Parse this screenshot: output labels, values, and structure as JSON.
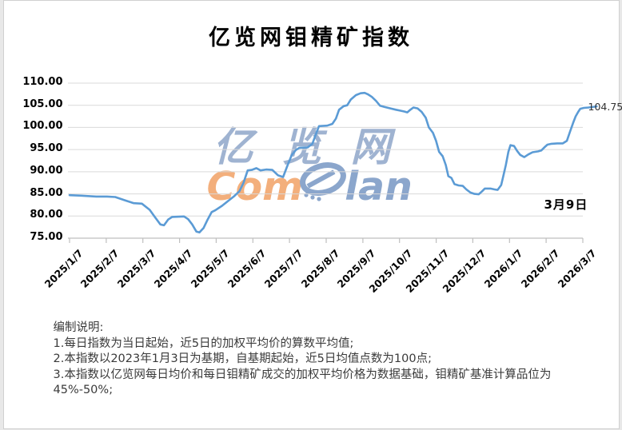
{
  "title": "亿览网钼精矿指数",
  "watermark": {
    "cn_text": "亿览网",
    "logo_com": "Com",
    "logo_lan": "lan",
    "cn_color": "#8fa6c9",
    "com_color": "#f2a76e",
    "lan_color": "#7f9dc7"
  },
  "annotations": {
    "last_value_label": "104.75",
    "date_label": "3月9日"
  },
  "notes": {
    "heading": "编制说明:",
    "items": [
      "1.每日指数为当日起始，近5日的加权平均价的算数平均值;",
      "2.本指数以2023年1月3日为基期，自基期起始，近5日均值点数为100点;",
      "3.本指数以亿览网每日均价和每日钼精矿成交的加权平均价格为数据基础，钼精矿基准计算品位为45%-50%;"
    ]
  },
  "colors": {
    "grid": "#d9d9d9",
    "axis": "#bfbfbf",
    "background": "#ffffff",
    "frame": "#d0d0d0",
    "text": "#000000",
    "note_text": "#3a3a3a"
  },
  "chart_data": {
    "type": "line",
    "title": "亿览网钼精矿指数",
    "series_name": "钼精矿指数",
    "line_color": "#5B9BD5",
    "grid": true,
    "legend": "none",
    "ylim": [
      75,
      110
    ],
    "y_ticks": [
      110,
      105,
      100,
      95,
      90,
      85,
      80,
      75
    ],
    "y_tick_labels": [
      "110.00",
      "105.00",
      "100.00",
      "95.00",
      "90.00",
      "85.00",
      "80.00",
      "75.00"
    ],
    "x_tick_labels": [
      "2025/1/7",
      "2025/2/7",
      "2025/3/7",
      "2025/4/7",
      "2025/5/7",
      "2025/6/7",
      "2025/7/7",
      "2025/8/7",
      "2025/9/7",
      "2025/10/7",
      "2025/11/7",
      "2025/12/7",
      "2026/1/7",
      "2026/2/7",
      "2026/3/7"
    ],
    "last_point": {
      "date": "3月9日",
      "value": 104.75
    },
    "points": [
      [
        0.0,
        84.7
      ],
      [
        0.023,
        84.6
      ],
      [
        0.052,
        84.4
      ],
      [
        0.073,
        84.4
      ],
      [
        0.089,
        84.3
      ],
      [
        0.109,
        83.5
      ],
      [
        0.125,
        82.9
      ],
      [
        0.141,
        82.8
      ],
      [
        0.156,
        81.4
      ],
      [
        0.166,
        79.8
      ],
      [
        0.177,
        78.1
      ],
      [
        0.184,
        77.9
      ],
      [
        0.192,
        79.2
      ],
      [
        0.2,
        79.8
      ],
      [
        0.223,
        79.9
      ],
      [
        0.231,
        79.3
      ],
      [
        0.239,
        78.1
      ],
      [
        0.247,
        76.5
      ],
      [
        0.253,
        76.3
      ],
      [
        0.261,
        77.3
      ],
      [
        0.269,
        79.2
      ],
      [
        0.277,
        80.9
      ],
      [
        0.284,
        81.3
      ],
      [
        0.297,
        82.3
      ],
      [
        0.309,
        83.4
      ],
      [
        0.32,
        84.4
      ],
      [
        0.331,
        85.6
      ],
      [
        0.339,
        87.5
      ],
      [
        0.347,
        90.3
      ],
      [
        0.355,
        90.4
      ],
      [
        0.364,
        90.8
      ],
      [
        0.372,
        90.3
      ],
      [
        0.383,
        90.5
      ],
      [
        0.395,
        90.4
      ],
      [
        0.406,
        89.2
      ],
      [
        0.416,
        88.8
      ],
      [
        0.425,
        91.5
      ],
      [
        0.433,
        93.8
      ],
      [
        0.441,
        94.9
      ],
      [
        0.448,
        95.4
      ],
      [
        0.464,
        95.5
      ],
      [
        0.473,
        96.3
      ],
      [
        0.48,
        98.5
      ],
      [
        0.486,
        100.3
      ],
      [
        0.502,
        100.4
      ],
      [
        0.512,
        100.8
      ],
      [
        0.519,
        102.0
      ],
      [
        0.525,
        104.0
      ],
      [
        0.534,
        104.8
      ],
      [
        0.541,
        105.0
      ],
      [
        0.548,
        106.3
      ],
      [
        0.558,
        107.3
      ],
      [
        0.567,
        107.7
      ],
      [
        0.575,
        107.8
      ],
      [
        0.581,
        107.5
      ],
      [
        0.589,
        106.9
      ],
      [
        0.597,
        106.0
      ],
      [
        0.605,
        104.9
      ],
      [
        0.614,
        104.6
      ],
      [
        0.625,
        104.3
      ],
      [
        0.636,
        104.0
      ],
      [
        0.644,
        103.8
      ],
      [
        0.652,
        103.6
      ],
      [
        0.658,
        103.4
      ],
      [
        0.664,
        104.0
      ],
      [
        0.67,
        104.5
      ],
      [
        0.678,
        104.3
      ],
      [
        0.686,
        103.5
      ],
      [
        0.694,
        102.2
      ],
      [
        0.7,
        100.0
      ],
      [
        0.708,
        98.8
      ],
      [
        0.714,
        97.0
      ],
      [
        0.72,
        94.5
      ],
      [
        0.727,
        93.5
      ],
      [
        0.733,
        91.5
      ],
      [
        0.738,
        89.0
      ],
      [
        0.744,
        88.6
      ],
      [
        0.75,
        87.2
      ],
      [
        0.758,
        86.9
      ],
      [
        0.766,
        86.8
      ],
      [
        0.773,
        86.0
      ],
      [
        0.781,
        85.3
      ],
      [
        0.789,
        85.0
      ],
      [
        0.797,
        84.9
      ],
      [
        0.803,
        85.5
      ],
      [
        0.809,
        86.2
      ],
      [
        0.82,
        86.2
      ],
      [
        0.828,
        86.0
      ],
      [
        0.834,
        85.9
      ],
      [
        0.841,
        87.0
      ],
      [
        0.845,
        89.0
      ],
      [
        0.85,
        91.5
      ],
      [
        0.855,
        94.5
      ],
      [
        0.859,
        96.0
      ],
      [
        0.866,
        95.8
      ],
      [
        0.872,
        94.7
      ],
      [
        0.878,
        93.8
      ],
      [
        0.886,
        93.3
      ],
      [
        0.894,
        93.9
      ],
      [
        0.902,
        94.4
      ],
      [
        0.913,
        94.6
      ],
      [
        0.919,
        94.8
      ],
      [
        0.925,
        95.5
      ],
      [
        0.931,
        96.1
      ],
      [
        0.939,
        96.3
      ],
      [
        0.95,
        96.4
      ],
      [
        0.961,
        96.4
      ],
      [
        0.969,
        97.0
      ],
      [
        0.975,
        99.0
      ],
      [
        0.981,
        101.0
      ],
      [
        0.986,
        102.5
      ],
      [
        0.991,
        103.5
      ],
      [
        0.995,
        104.2
      ],
      [
        1.002,
        104.4
      ],
      [
        1.011,
        104.5
      ],
      [
        1.019,
        104.6
      ],
      [
        1.027,
        104.75
      ]
    ]
  }
}
